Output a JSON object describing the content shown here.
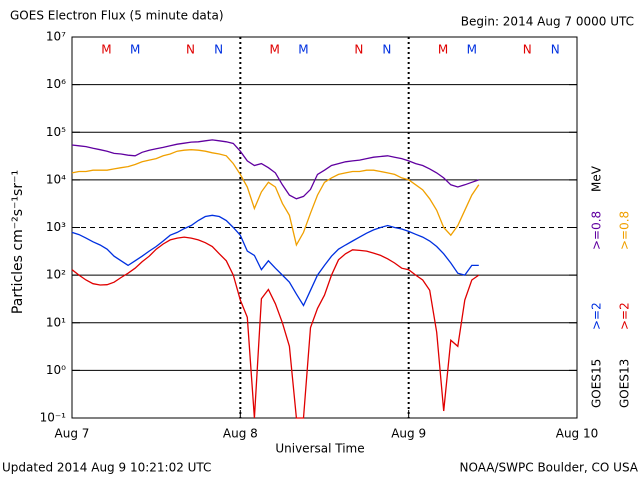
{
  "chart_data": {
    "type": "line",
    "title": "GOES Electron Flux (5 minute data)",
    "subtitle": "Begin: 2014 Aug 7 0000 UTC",
    "x_label": "Universal Time",
    "y_label": "Particles cm⁻²s⁻¹sr⁻¹",
    "footer_left": "Updated 2014 Aug  9 10:21:02 UTC",
    "footer_right": "NOAA/SWPC Boulder, CO USA",
    "legend_unit": "MeV",
    "satellites": [
      "GOES15",
      "GOES13"
    ],
    "log_y": true,
    "grid": true,
    "threshold": 1000,
    "xlim": [
      0,
      72
    ],
    "xticks": [
      {
        "value": 0,
        "label": "Aug 7"
      },
      {
        "value": 24,
        "label": "Aug 8"
      },
      {
        "value": 48,
        "label": "Aug 9"
      },
      {
        "value": 72,
        "label": "Aug 10"
      }
    ],
    "ylim": [
      0.1,
      10000000
    ],
    "yticks": [
      {
        "value": 0.1,
        "label": "10⁻¹"
      },
      {
        "value": 1,
        "label": "10⁰"
      },
      {
        "value": 10,
        "label": "10¹"
      },
      {
        "value": 100,
        "label": "10²"
      },
      {
        "value": 1000,
        "label": "10³"
      },
      {
        "value": 10000,
        "label": "10⁴"
      },
      {
        "value": 100000,
        "label": "10⁵"
      },
      {
        "value": 1000000,
        "label": "10⁶"
      },
      {
        "value": 10000000,
        "label": "10⁷"
      }
    ],
    "markers": [
      {
        "label": "M",
        "x": 4.9,
        "color": "#e00000"
      },
      {
        "label": "M",
        "x": 9.0,
        "color": "#0030e0"
      },
      {
        "label": "N",
        "x": 16.9,
        "color": "#e00000"
      },
      {
        "label": "N",
        "x": 20.9,
        "color": "#0030e0"
      },
      {
        "label": "M",
        "x": 28.9,
        "color": "#e00000"
      },
      {
        "label": "M",
        "x": 33.0,
        "color": "#0030e0"
      },
      {
        "label": "N",
        "x": 40.9,
        "color": "#e00000"
      },
      {
        "label": "N",
        "x": 44.9,
        "color": "#0030e0"
      },
      {
        "label": "M",
        "x": 52.9,
        "color": "#e00000"
      },
      {
        "label": "M",
        "x": 57.0,
        "color": "#0030e0"
      },
      {
        "label": "N",
        "x": 64.9,
        "color": "#e00000"
      },
      {
        "label": "N",
        "x": 68.9,
        "color": "#0030e0"
      }
    ],
    "x": [
      0,
      1,
      2,
      3,
      4,
      5,
      6,
      7,
      8,
      9,
      10,
      11,
      12,
      13,
      14,
      15,
      16,
      17,
      18,
      19,
      20,
      21,
      22,
      23,
      24,
      25,
      26,
      27,
      28,
      29,
      30,
      31,
      32,
      33,
      34,
      35,
      36,
      37,
      38,
      39,
      40,
      41,
      42,
      43,
      44,
      45,
      46,
      47,
      48,
      49,
      50,
      51,
      52,
      53,
      54,
      55,
      56,
      57,
      58
    ],
    "series": [
      {
        "name": ">=0.8",
        "satellite": 0,
        "color": "#6000a0",
        "values": [
          54000,
          52000,
          50000,
          46000,
          43000,
          40000,
          36000,
          35000,
          33000,
          32000,
          38000,
          42000,
          45000,
          48000,
          52000,
          56000,
          59000,
          62000,
          63000,
          66000,
          69000,
          66000,
          63000,
          58000,
          40000,
          25000,
          20000,
          22000,
          18000,
          14000,
          7900,
          4800,
          4000,
          4500,
          6300,
          13000,
          16000,
          20000,
          22000,
          24000,
          25000,
          26000,
          28000,
          30000,
          31000,
          32000,
          30000,
          28000,
          25000,
          22000,
          20000,
          17000,
          14000,
          11000,
          7900,
          7100,
          7900,
          8900,
          10000
        ]
      },
      {
        "name": ">=0.8",
        "satellite": 1,
        "color": "#f0a000",
        "values": [
          14000,
          15000,
          15000,
          16000,
          16000,
          16000,
          17000,
          18000,
          19000,
          21000,
          24000,
          26000,
          28000,
          32000,
          35000,
          40000,
          42000,
          43000,
          42000,
          40000,
          37000,
          35000,
          32000,
          22000,
          13000,
          7100,
          2500,
          5600,
          8900,
          7100,
          3200,
          1800,
          430,
          790,
          2000,
          4800,
          8900,
          11000,
          13000,
          14000,
          15000,
          15000,
          16000,
          16000,
          15000,
          14000,
          13000,
          11000,
          10000,
          7900,
          6200,
          4000,
          2300,
          1000,
          690,
          1100,
          2300,
          4800,
          7900
        ]
      },
      {
        "name": ">=2",
        "satellite": 0,
        "color": "#0030e0",
        "values": [
          790,
          710,
          600,
          500,
          430,
          350,
          250,
          200,
          160,
          200,
          250,
          320,
          400,
          520,
          690,
          790,
          950,
          1100,
          1400,
          1700,
          1800,
          1700,
          1400,
          1000,
          690,
          320,
          260,
          130,
          200,
          140,
          100,
          71,
          40,
          23,
          48,
          100,
          160,
          250,
          350,
          430,
          520,
          630,
          760,
          890,
          1000,
          1100,
          1000,
          930,
          830,
          720,
          630,
          520,
          400,
          280,
          180,
          110,
          100,
          160,
          160
        ]
      },
      {
        "name": ">=2",
        "satellite": 1,
        "color": "#e00000",
        "values": [
          130,
          100,
          79,
          66,
          62,
          63,
          71,
          89,
          110,
          140,
          190,
          250,
          350,
          450,
          550,
          600,
          630,
          600,
          550,
          480,
          400,
          280,
          200,
          100,
          30,
          13,
          0.1,
          32,
          50,
          25,
          10,
          3.2,
          0.1,
          0.1,
          7.9,
          20,
          38,
          100,
          210,
          280,
          340,
          330,
          320,
          290,
          260,
          220,
          180,
          140,
          130,
          100,
          79,
          48,
          6.3,
          0.14,
          4.3,
          3.2,
          30,
          79,
          100
        ]
      }
    ]
  }
}
